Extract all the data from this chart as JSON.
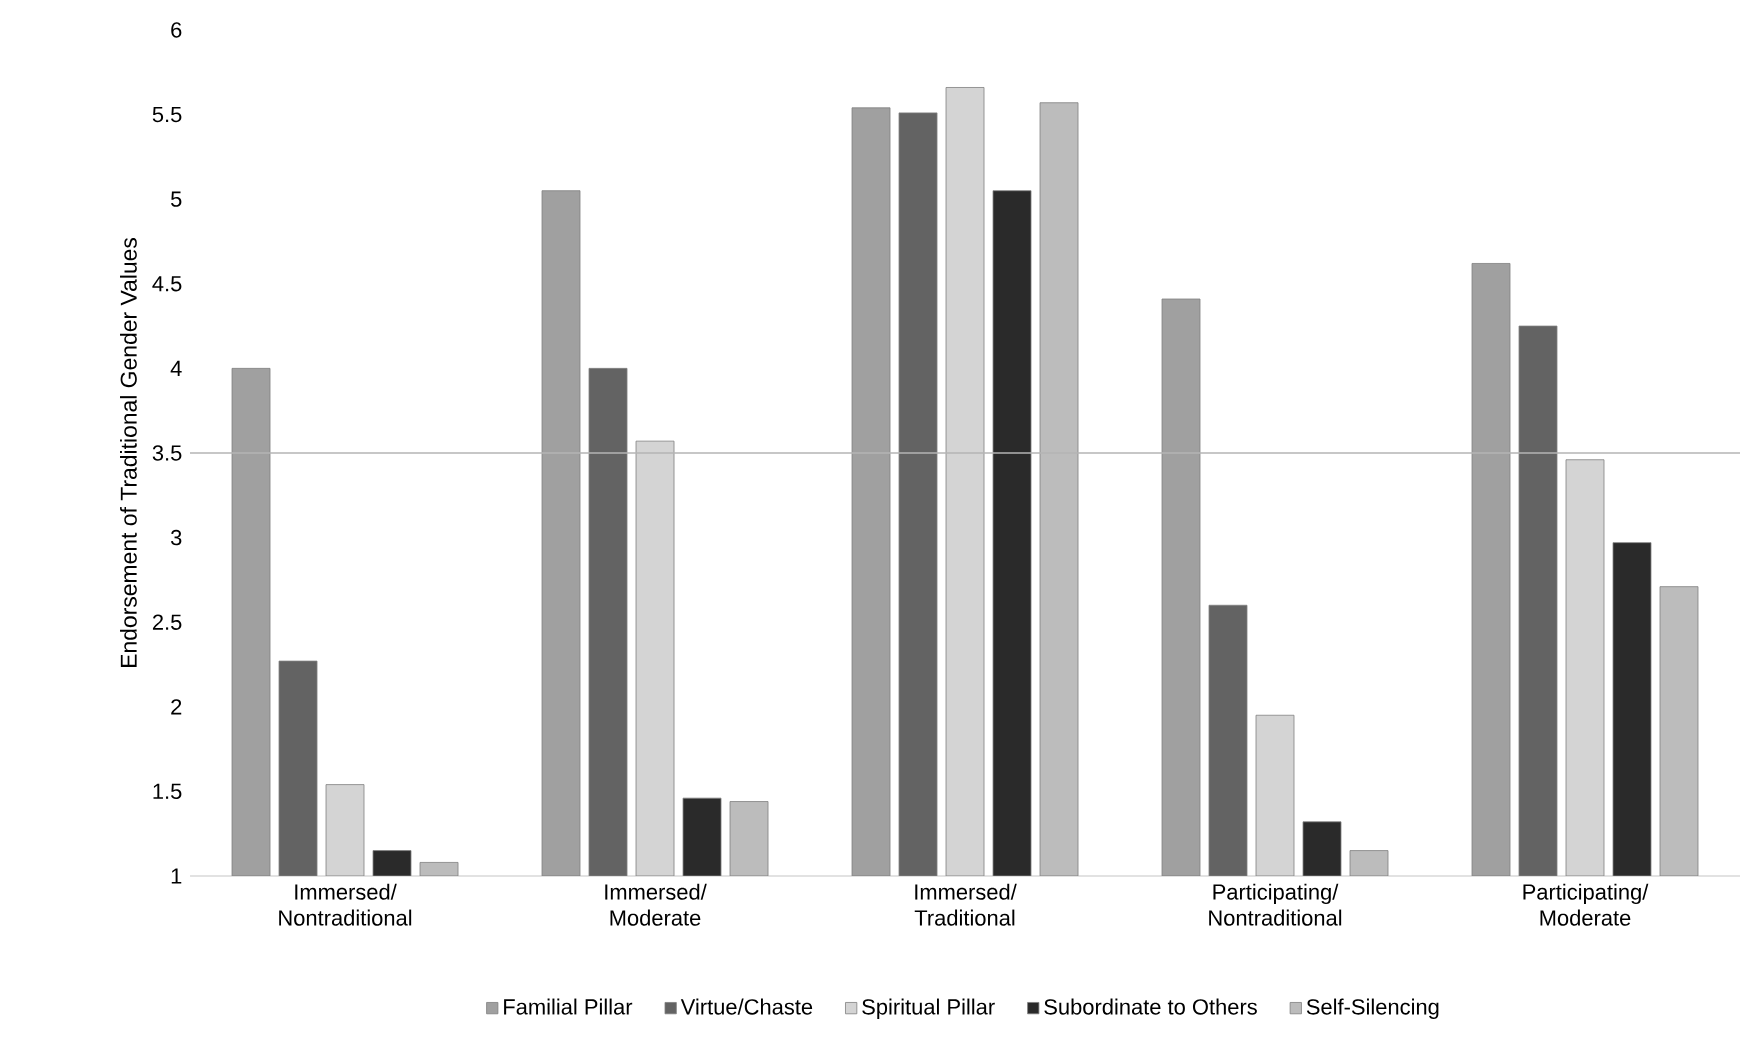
{
  "chart_data": {
    "type": "bar",
    "ylabel": "Endorsement of Traditional Gender Values",
    "categories": [
      "Immersed/ Nontraditional",
      "Immersed/ Moderate",
      "Immersed/ Traditional",
      "Participating/ Nontraditional",
      "Participating/ Moderate"
    ],
    "series": [
      {
        "name": "Familial Pillar",
        "color": "#a0a0a0",
        "values": [
          4.0,
          5.05,
          5.54,
          4.41,
          4.62
        ]
      },
      {
        "name": "Virtue/Chaste",
        "color": "#636363",
        "values": [
          2.27,
          4.0,
          5.51,
          2.6,
          4.25
        ]
      },
      {
        "name": "Spiritual Pillar",
        "color": "#d4d4d4",
        "values": [
          1.54,
          3.57,
          5.66,
          1.95,
          3.46
        ]
      },
      {
        "name": "Subordinate to Others",
        "color": "#2a2a2a",
        "values": [
          1.15,
          1.46,
          5.05,
          1.32,
          2.97
        ]
      },
      {
        "name": "Self-Silencing",
        "color": "#bcbcbc",
        "values": [
          1.08,
          1.44,
          5.57,
          1.15,
          2.71
        ]
      }
    ],
    "ylim": [
      1,
      6
    ],
    "yticks": [
      1,
      1.5,
      2,
      2.5,
      3,
      3.5,
      4,
      4.5,
      5,
      5.5,
      6
    ],
    "ref_lines": [
      {
        "axis": "y",
        "value": 3.5,
        "color": "#b4b4b4"
      }
    ],
    "grid": false,
    "legend": "bottom"
  }
}
